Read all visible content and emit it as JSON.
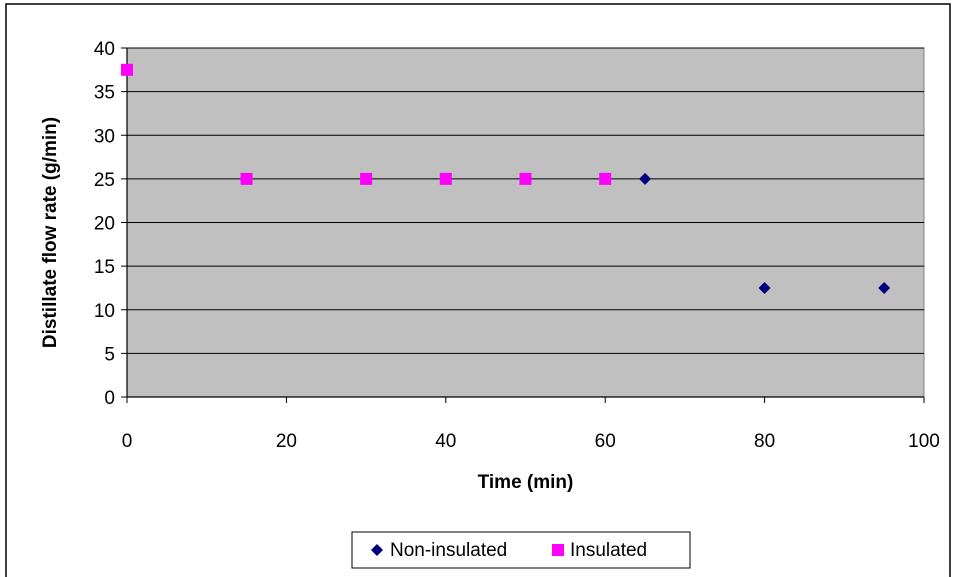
{
  "chart_data": {
    "type": "scatter",
    "title": "",
    "xlabel": "Time (min)",
    "ylabel": "Distillate flow rate (g/min)",
    "xlim": [
      0,
      100
    ],
    "ylim": [
      0,
      40
    ],
    "x_ticks": [
      0,
      20,
      40,
      60,
      80,
      100
    ],
    "y_ticks": [
      0,
      5,
      10,
      15,
      20,
      25,
      30,
      35,
      40
    ],
    "x_tick_labels": [
      "0",
      "20",
      "40",
      "60",
      "80",
      "100"
    ],
    "y_tick_labels": [
      "0",
      "5",
      "10",
      "15",
      "20",
      "25",
      "30",
      "35",
      "40"
    ],
    "grid": "horizontal",
    "legend": "bottom",
    "plot_background": "#c0c0c0",
    "series": [
      {
        "name": "Non-insulated",
        "marker": "diamond",
        "color": "#000080",
        "points": [
          {
            "x": 0,
            "y": 37.5
          },
          {
            "x": 30,
            "y": 25
          },
          {
            "x": 50,
            "y": 25
          },
          {
            "x": 65,
            "y": 25
          },
          {
            "x": 80,
            "y": 12.5
          },
          {
            "x": 95,
            "y": 12.5
          }
        ]
      },
      {
        "name": "Insulated",
        "marker": "square",
        "color": "#ff00ff",
        "points": [
          {
            "x": 0,
            "y": 37.5
          },
          {
            "x": 15,
            "y": 25
          },
          {
            "x": 30,
            "y": 25
          },
          {
            "x": 40,
            "y": 25
          },
          {
            "x": 50,
            "y": 25
          },
          {
            "x": 60,
            "y": 25
          }
        ]
      }
    ]
  }
}
